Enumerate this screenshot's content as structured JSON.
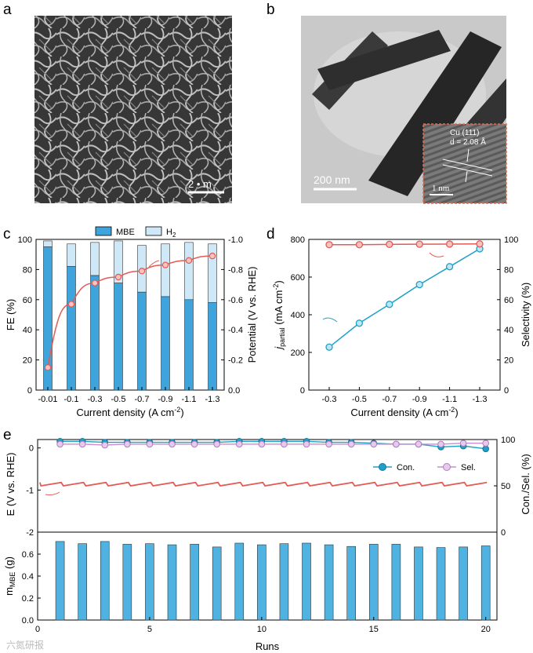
{
  "panels": {
    "a": {
      "letter": "a",
      "scalebar": "2 • m"
    },
    "b": {
      "letter": "b",
      "scalebar": "200 nm",
      "inset_plane": "Cu (111)",
      "inset_d": "d = 2.08  Å",
      "inset_scale": "1 nm"
    },
    "c": {
      "letter": "c"
    },
    "d": {
      "letter": "d"
    },
    "e": {
      "letter": "e"
    }
  },
  "watermark": "六氮研报",
  "chart_data": [
    {
      "id": "c",
      "type": "bar",
      "categories": [
        "-0.01",
        "-0.1",
        "-0.3",
        "-0.5",
        "-0.7",
        "-0.9",
        "-1.1",
        "-1.3"
      ],
      "series": [
        {
          "name": "MBE",
          "values": [
            95,
            82,
            76,
            71,
            65,
            62,
            60,
            58
          ],
          "color": "#3fa4db"
        },
        {
          "name": "H2",
          "values": [
            4,
            15,
            22,
            28,
            31,
            35,
            38,
            39
          ],
          "color": "#cfe8f7"
        }
      ],
      "line": {
        "name": "Potential",
        "values": [
          -0.15,
          -0.57,
          -0.71,
          -0.75,
          -0.79,
          -0.83,
          -0.86,
          -0.89
        ],
        "color": "#e45a55"
      },
      "legend": {
        "mbe": "MBE",
        "h2_main": "H",
        "h2_sub": "2"
      },
      "xlabel": {
        "main": "Current density (A cm",
        "sup": "-2",
        "end": ")"
      },
      "ylabel": "FE (%)",
      "y2label": "Potential (V vs. RHE)",
      "ylim": [
        0,
        100
      ],
      "y2lim": [
        0,
        -1.0
      ],
      "yticks": [
        "0",
        "20",
        "40",
        "60",
        "80",
        "100"
      ],
      "y2ticks": [
        "0.0",
        "-0.2",
        "-0.4",
        "-0.6",
        "-0.8",
        "-1.0"
      ]
    },
    {
      "id": "d",
      "type": "line",
      "categories": [
        "-0.3",
        "-0.5",
        "-0.7",
        "-0.9",
        "-1.1",
        "-1.3"
      ],
      "series": [
        {
          "name": "j_partial",
          "axis": "left",
          "values": [
            228,
            355,
            455,
            560,
            655,
            750
          ],
          "color": "#1ea1c8"
        },
        {
          "name": "Selectivity",
          "axis": "right",
          "values": [
            96.5,
            96.5,
            96.7,
            96.8,
            96.9,
            97.0
          ],
          "color": "#e45a55"
        }
      ],
      "xlabel": {
        "main": "Current density (A cm",
        "sup": "-2",
        "end": ")"
      },
      "ylabel": {
        "j": "j",
        "sub": "partial",
        "main": " (mA cm",
        "sup": "-2",
        "end": ")"
      },
      "y2label": "Selectivity (%)",
      "ylim": [
        0,
        800
      ],
      "y2lim": [
        0,
        100
      ],
      "yticks": [
        "0",
        "200",
        "400",
        "600",
        "800"
      ],
      "y2ticks": [
        "0",
        "20",
        "40",
        "60",
        "80",
        "100"
      ]
    },
    {
      "id": "e-top",
      "type": "line",
      "runs": [
        1,
        2,
        3,
        4,
        5,
        6,
        7,
        8,
        9,
        10,
        11,
        12,
        13,
        14,
        15,
        16,
        17,
        18,
        19,
        20
      ],
      "series": [
        {
          "name": "Con.",
          "axis": "right",
          "values": [
            98,
            98,
            97,
            97,
            97,
            97,
            97,
            97,
            98,
            98,
            98,
            98,
            97,
            97,
            96,
            95,
            95,
            92,
            93,
            90
          ],
          "color": "#1ea1c8"
        },
        {
          "name": "Sel.",
          "axis": "right",
          "values": [
            95,
            95,
            94,
            95,
            95,
            95,
            95,
            95,
            95,
            95,
            95,
            95,
            95,
            95,
            95,
            95,
            95,
            95,
            96,
            96
          ],
          "color": "#c58fcf"
        }
      ],
      "potential": {
        "value": -0.82,
        "min": -0.9,
        "color": "#e45a55"
      },
      "legend": [
        "Con.",
        "Sel."
      ],
      "ylabel": "E (V vs. RHE)",
      "y2label": "Con./Sel. (%)",
      "ylim": [
        -2,
        0.2
      ],
      "y2lim": [
        0,
        100
      ],
      "yticks": [
        "0",
        "-1",
        "-2"
      ],
      "y2ticks": [
        "100",
        "50",
        "0"
      ]
    },
    {
      "id": "e-bottom",
      "type": "bar",
      "runs": [
        1,
        2,
        3,
        4,
        5,
        6,
        7,
        8,
        9,
        10,
        11,
        12,
        13,
        14,
        15,
        16,
        17,
        18,
        19,
        20
      ],
      "values": [
        0.715,
        0.695,
        0.715,
        0.69,
        0.695,
        0.685,
        0.69,
        0.665,
        0.7,
        0.685,
        0.695,
        0.7,
        0.685,
        0.67,
        0.69,
        0.69,
        0.665,
        0.66,
        0.665,
        0.675
      ],
      "color": "#4fb2e0",
      "xlabel": "Runs",
      "ylabel": {
        "main": "m",
        "sub": "MBE",
        "end": " (g)"
      },
      "ylim": [
        0,
        0.8
      ],
      "yticks": [
        "0.0",
        "0.2",
        "0.4",
        "0.6"
      ],
      "xticks": [
        "0",
        "5",
        "10",
        "15",
        "20"
      ]
    }
  ]
}
